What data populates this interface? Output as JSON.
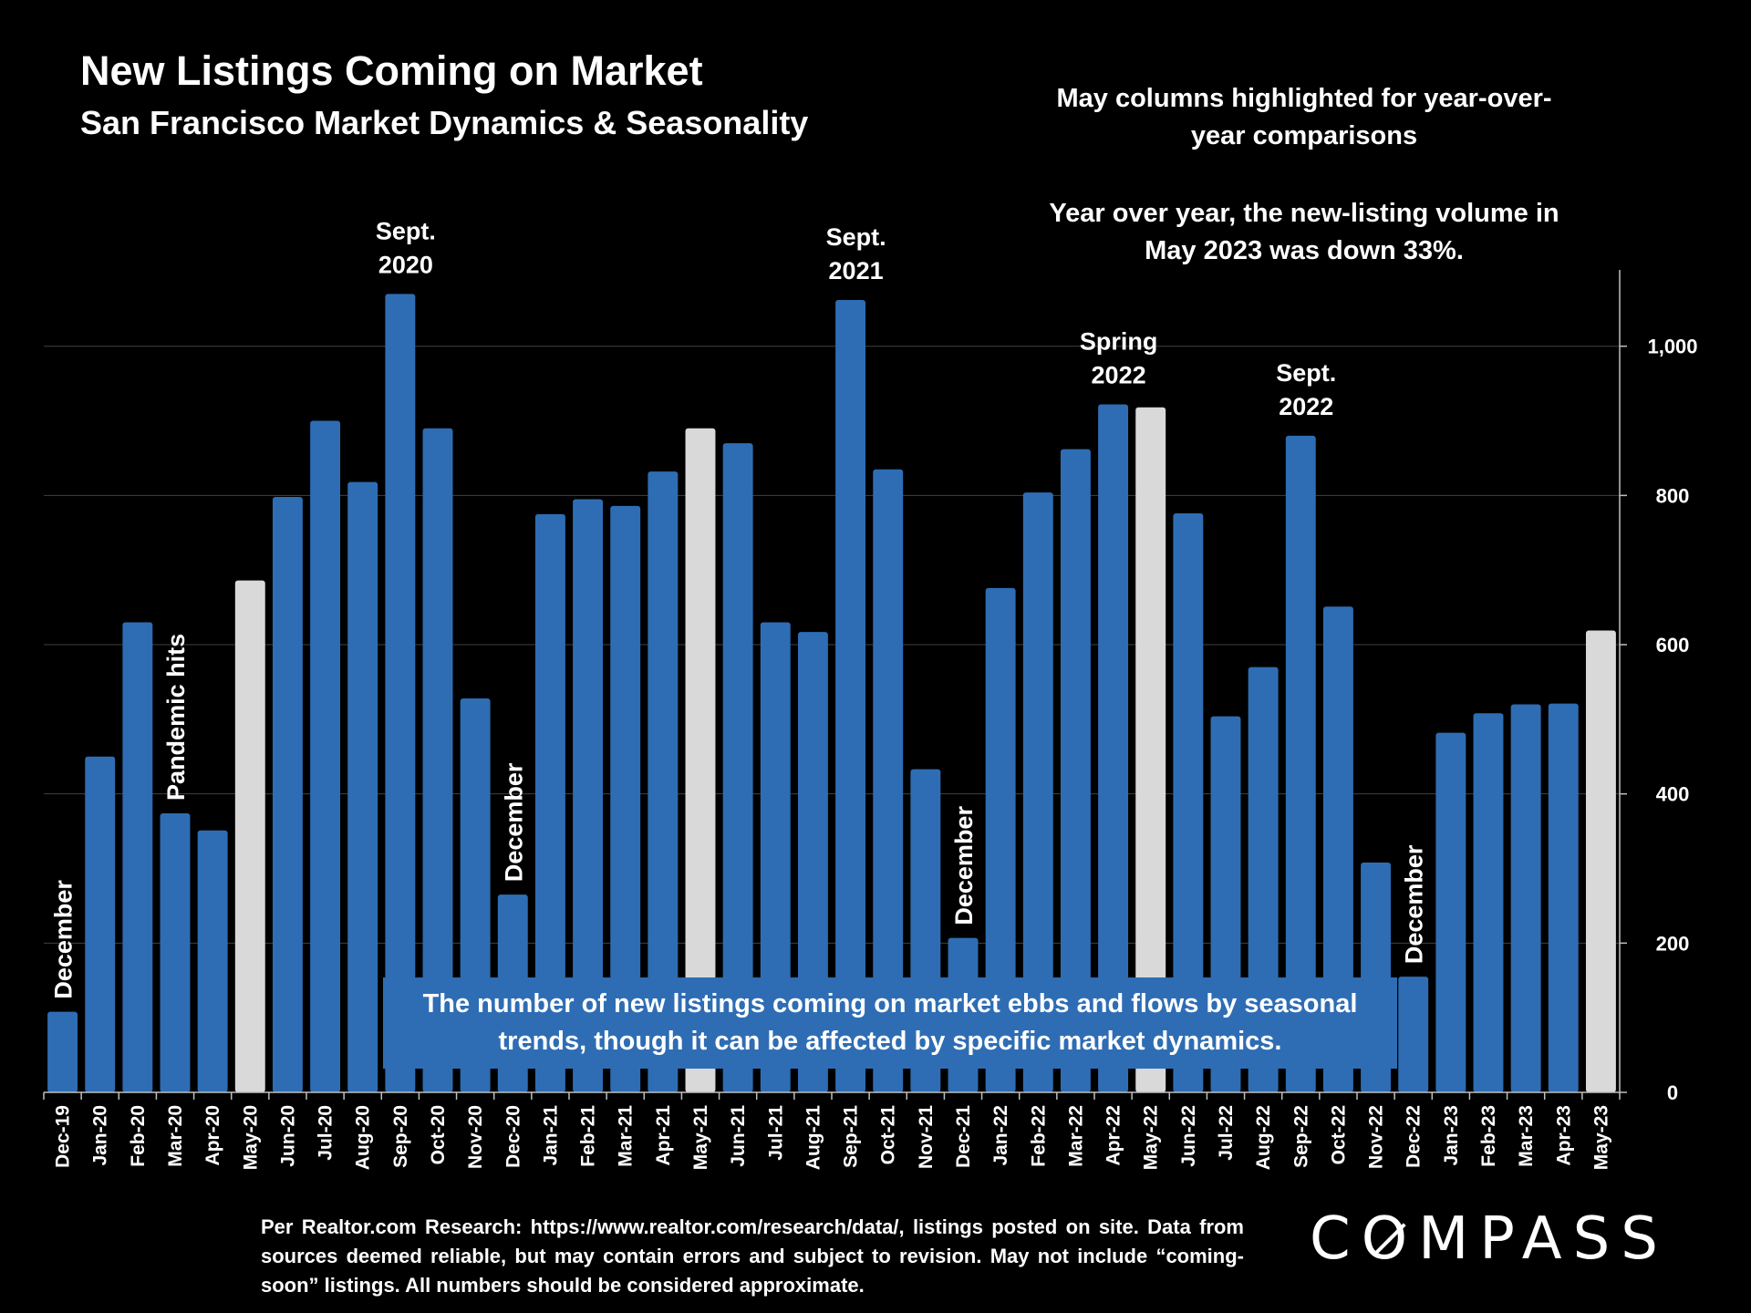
{
  "header": {
    "title": "New Listings Coming on Market",
    "subtitle": "San Francisco Market Dynamics & Seasonality"
  },
  "notes": {
    "highlight": "May columns highlighted for year-over-year comparisons",
    "yoy": "Year over year, the new-listing volume in May 2023 was down 33%."
  },
  "callout": "The number of new listings coming on market ebbs and flows by seasonal trends, though it can be affected by specific market dynamics.",
  "source": "Per Realtor.com Research: https://www.realtor.com/research/data/, listings posted on site. Data from sources deemed reliable, but may contain errors and subject to revision. May not include “coming-soon” listings. All numbers should be considered approximate.",
  "logo": {
    "pre": "C",
    "o": "O",
    "post": "MPASS"
  },
  "colors": {
    "bar": "#2e6db4",
    "highlight": "#d9d9d9",
    "background": "#000000",
    "grid": "#404040"
  },
  "chart_data": {
    "type": "bar",
    "title": "New Listings Coming on Market",
    "xlabel": "",
    "ylabel": "",
    "ylim": [
      0,
      1100
    ],
    "yticks": [
      0,
      200,
      400,
      600,
      800,
      1000
    ],
    "ytick_labels": [
      "0",
      "200",
      "400",
      "600",
      "800",
      "1,000"
    ],
    "grid": true,
    "categories": [
      "Dec-19",
      "Jan-20",
      "Feb-20",
      "Mar-20",
      "Apr-20",
      "May-20",
      "Jun-20",
      "Jul-20",
      "Aug-20",
      "Sep-20",
      "Oct-20",
      "Nov-20",
      "Dec-20",
      "Jan-21",
      "Feb-21",
      "Mar-21",
      "Apr-21",
      "May-21",
      "Jun-21",
      "Jul-21",
      "Aug-21",
      "Sep-21",
      "Oct-21",
      "Nov-21",
      "Dec-21",
      "Jan-22",
      "Feb-22",
      "Mar-22",
      "Apr-22",
      "May-22",
      "Jun-22",
      "Jul-22",
      "Aug-22",
      "Sep-22",
      "Oct-22",
      "Nov-22",
      "Dec-22",
      "Jan-23",
      "Feb-23",
      "Mar-23",
      "Apr-23",
      "May-23"
    ],
    "values": [
      108,
      450,
      630,
      374,
      351,
      686,
      798,
      900,
      818,
      1070,
      890,
      528,
      265,
      775,
      795,
      786,
      832,
      890,
      870,
      630,
      617,
      1062,
      835,
      433,
      207,
      676,
      804,
      862,
      922,
      918,
      776,
      504,
      570,
      880,
      651,
      308,
      155,
      482,
      508,
      520,
      521,
      619
    ],
    "highlighted": [
      "May-20",
      "May-21",
      "May-22",
      "May-23"
    ],
    "annotations": [
      {
        "text": "December",
        "category": "Dec-19",
        "orientation": "vertical"
      },
      {
        "text": "Pandemic hits",
        "category": "Mar-20",
        "orientation": "vertical"
      },
      {
        "text": "Sept. 2020",
        "category": "Sep-20",
        "orientation": "horizontal"
      },
      {
        "text": "December",
        "category": "Dec-20",
        "orientation": "vertical"
      },
      {
        "text": "Sept. 2021",
        "category": "Sep-21",
        "orientation": "horizontal"
      },
      {
        "text": "December",
        "category": "Dec-21",
        "orientation": "vertical"
      },
      {
        "text": "Spring 2022",
        "category": "Apr-22",
        "orientation": "horizontal"
      },
      {
        "text": "Sept. 2022",
        "category": "Sep-22",
        "orientation": "horizontal"
      },
      {
        "text": "December",
        "category": "Dec-22",
        "orientation": "vertical"
      }
    ]
  }
}
